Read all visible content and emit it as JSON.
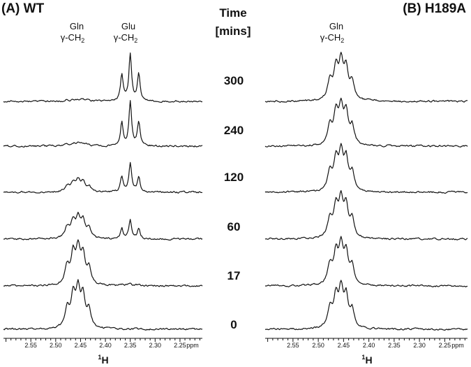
{
  "chart_data": {
    "type": "line",
    "time_header": {
      "line1": "Time",
      "line2": "[mins]"
    },
    "time_points": [
      "300",
      "240",
      "120",
      "60",
      "17",
      "0"
    ],
    "x_axis": {
      "unit": "ppm",
      "reversed": true,
      "range": [
        2.205,
        2.605
      ],
      "ticks": [
        "2.55",
        "2.50",
        "2.45",
        "2.40",
        "2.35",
        "2.30",
        "2.25"
      ],
      "tick_values": [
        2.55,
        2.5,
        2.45,
        2.4,
        2.35,
        2.3,
        2.25
      ],
      "label_super": "1",
      "label_main": "H"
    },
    "panels": [
      {
        "title": "(A) WT",
        "peak_labels": [
          {
            "name": "Gln",
            "group": "γ-CH",
            "sub": "2",
            "ppm": 2.455
          },
          {
            "name": "Glu",
            "group": "γ-CH",
            "sub": "2",
            "ppm": 2.35
          }
        ],
        "series": [
          {
            "time": "300",
            "gln_intensity": 0.05,
            "glu_intensity": 1.0
          },
          {
            "time": "240",
            "gln_intensity": 0.08,
            "glu_intensity": 0.92
          },
          {
            "time": "120",
            "gln_intensity": 0.3,
            "glu_intensity": 0.6
          },
          {
            "time": "60",
            "gln_intensity": 0.55,
            "glu_intensity": 0.4
          },
          {
            "time": "17",
            "gln_intensity": 0.95,
            "glu_intensity": 0.06
          },
          {
            "time": "0",
            "gln_intensity": 1.0,
            "glu_intensity": 0.0
          }
        ]
      },
      {
        "title": "(B) H189A",
        "peak_labels": [
          {
            "name": "Gln",
            "group": "γ-CH",
            "sub": "2",
            "ppm": 2.455
          }
        ],
        "series": [
          {
            "time": "300",
            "gln_intensity": 1.0,
            "glu_intensity": 0.0
          },
          {
            "time": "240",
            "gln_intensity": 1.0,
            "glu_intensity": 0.0
          },
          {
            "time": "120",
            "gln_intensity": 1.0,
            "glu_intensity": 0.0
          },
          {
            "time": "60",
            "gln_intensity": 1.0,
            "glu_intensity": 0.0
          },
          {
            "time": "17",
            "gln_intensity": 1.0,
            "glu_intensity": 0.0
          },
          {
            "time": "0",
            "gln_intensity": 1.0,
            "glu_intensity": 0.0
          }
        ]
      }
    ]
  }
}
